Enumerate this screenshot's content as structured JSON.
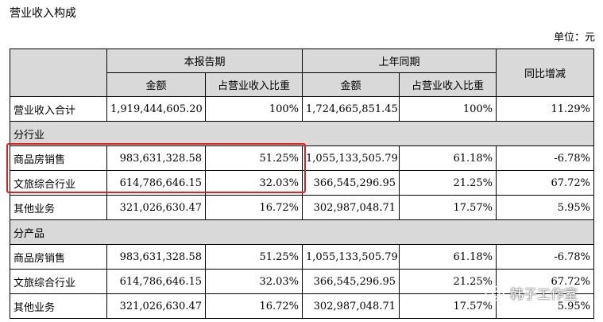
{
  "section_title": "营业收入构成",
  "unit": "单位：元",
  "header": {
    "current_period": "本报告期",
    "prior_period": "上年同期",
    "yoy": "同比增减",
    "amount": "金额",
    "share": "占营业收入比重",
    "amount2": "金额",
    "share2": "占营业收入比重"
  },
  "total_row": {
    "label": "营业收入合计",
    "cur_amount": "1,919,444,605.20",
    "cur_share": "100%",
    "prev_amount": "1,724,665,851.45",
    "prev_share": "100%",
    "yoy": "11.29%"
  },
  "by_industry": {
    "title": "分行业",
    "rows": [
      {
        "label": "商品房销售",
        "cur_amount": "983,631,328.58",
        "cur_share": "51.25%",
        "prev_amount": "1,055,133,505.79",
        "prev_share": "61.18%",
        "yoy": "-6.78%"
      },
      {
        "label": "文旅综合行业",
        "cur_amount": "614,786,646.15",
        "cur_share": "32.03%",
        "prev_amount": "366,545,296.95",
        "prev_share": "21.25%",
        "yoy": "67.72%"
      },
      {
        "label": "其他业务",
        "cur_amount": "321,026,630.47",
        "cur_share": "16.72%",
        "prev_amount": "302,987,048.71",
        "prev_share": "17.57%",
        "yoy": "5.95%"
      }
    ]
  },
  "by_product": {
    "title": "分产品",
    "rows": [
      {
        "label": "商品房销售",
        "cur_amount": "983,631,328.58",
        "cur_share": "51.25%",
        "prev_amount": "1,055,133,505.79",
        "prev_share": "61.18%",
        "yoy": "-6.78%"
      },
      {
        "label": "文旅综合行业",
        "cur_amount": "614,786,646.15",
        "cur_share": "32.03%",
        "prev_amount": "366,545,296.95",
        "prev_share": "21.25%",
        "yoy": "67.72%"
      },
      {
        "label": "其他业务",
        "cur_amount": "321,026,630.47",
        "cur_share": "16.72%",
        "prev_amount": "302,987,048.71",
        "prev_share": "17.57%",
        "yoy": "5.95%"
      }
    ]
  },
  "watermark": {
    "text": "韩子工作室",
    "icon": "wechat-icon"
  },
  "colors": {
    "header_bg": "#d9d9d9",
    "highlight": "#e02020"
  }
}
